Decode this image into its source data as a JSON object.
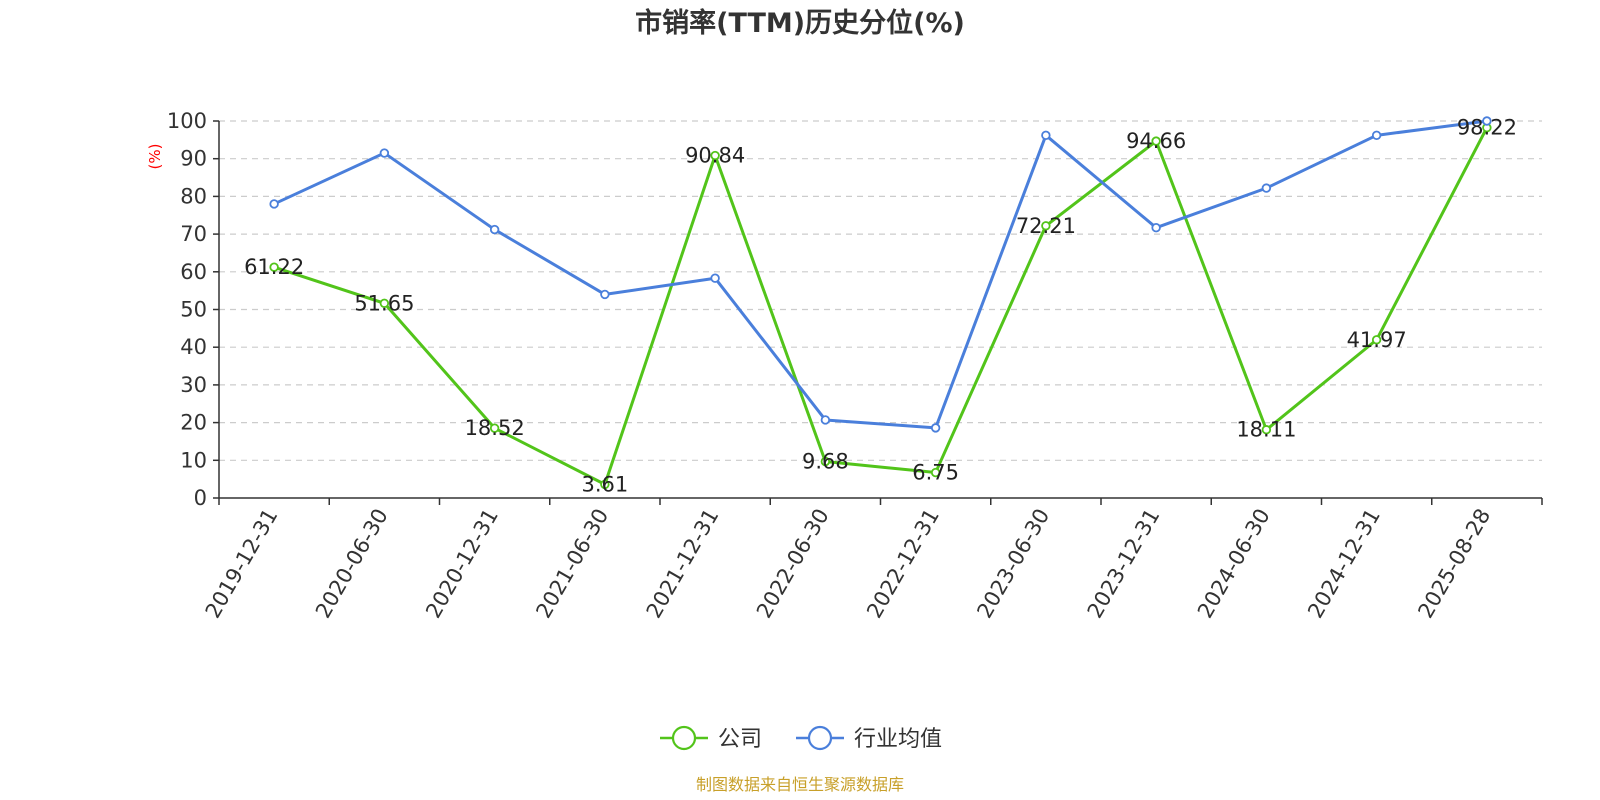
{
  "chart_data": {
    "type": "line",
    "title": "市销率(TTM)历史分位(%)",
    "ylabel": "(%)",
    "ylim": [
      0,
      100
    ],
    "yticks": [
      0,
      10,
      20,
      30,
      40,
      50,
      60,
      70,
      80,
      90,
      100
    ],
    "categories": [
      "2019-12-31",
      "2020-06-30",
      "2020-12-31",
      "2021-06-30",
      "2021-12-31",
      "2022-06-30",
      "2022-12-31",
      "2023-06-30",
      "2023-12-31",
      "2024-06-30",
      "2024-12-31",
      "2025-08-28"
    ],
    "grid": true,
    "legend_position": "bottom",
    "series": [
      {
        "name": "公司",
        "color": "#52c41a",
        "values": [
          61.22,
          51.65,
          18.52,
          3.61,
          90.84,
          9.68,
          6.75,
          72.21,
          94.66,
          18.11,
          41.97,
          98.22
        ],
        "labels": [
          "61.22",
          "51.65",
          "18.52",
          "3.61",
          "90.84",
          "9.68",
          "6.75",
          "72.21",
          "94.66",
          "18.11",
          "41.97",
          "98.22"
        ]
      },
      {
        "name": "行业均值",
        "color": "#4a7fdb",
        "values": [
          78,
          91.5,
          71.2,
          54,
          58.3,
          20.7,
          18.6,
          96.2,
          71.7,
          82.2,
          96.2,
          100
        ]
      }
    ]
  },
  "source_text": "制图数据来自恒生聚源数据库",
  "colors": {
    "title": "#333333",
    "ylabel": "#ff0000",
    "source": "#c8a02a"
  }
}
